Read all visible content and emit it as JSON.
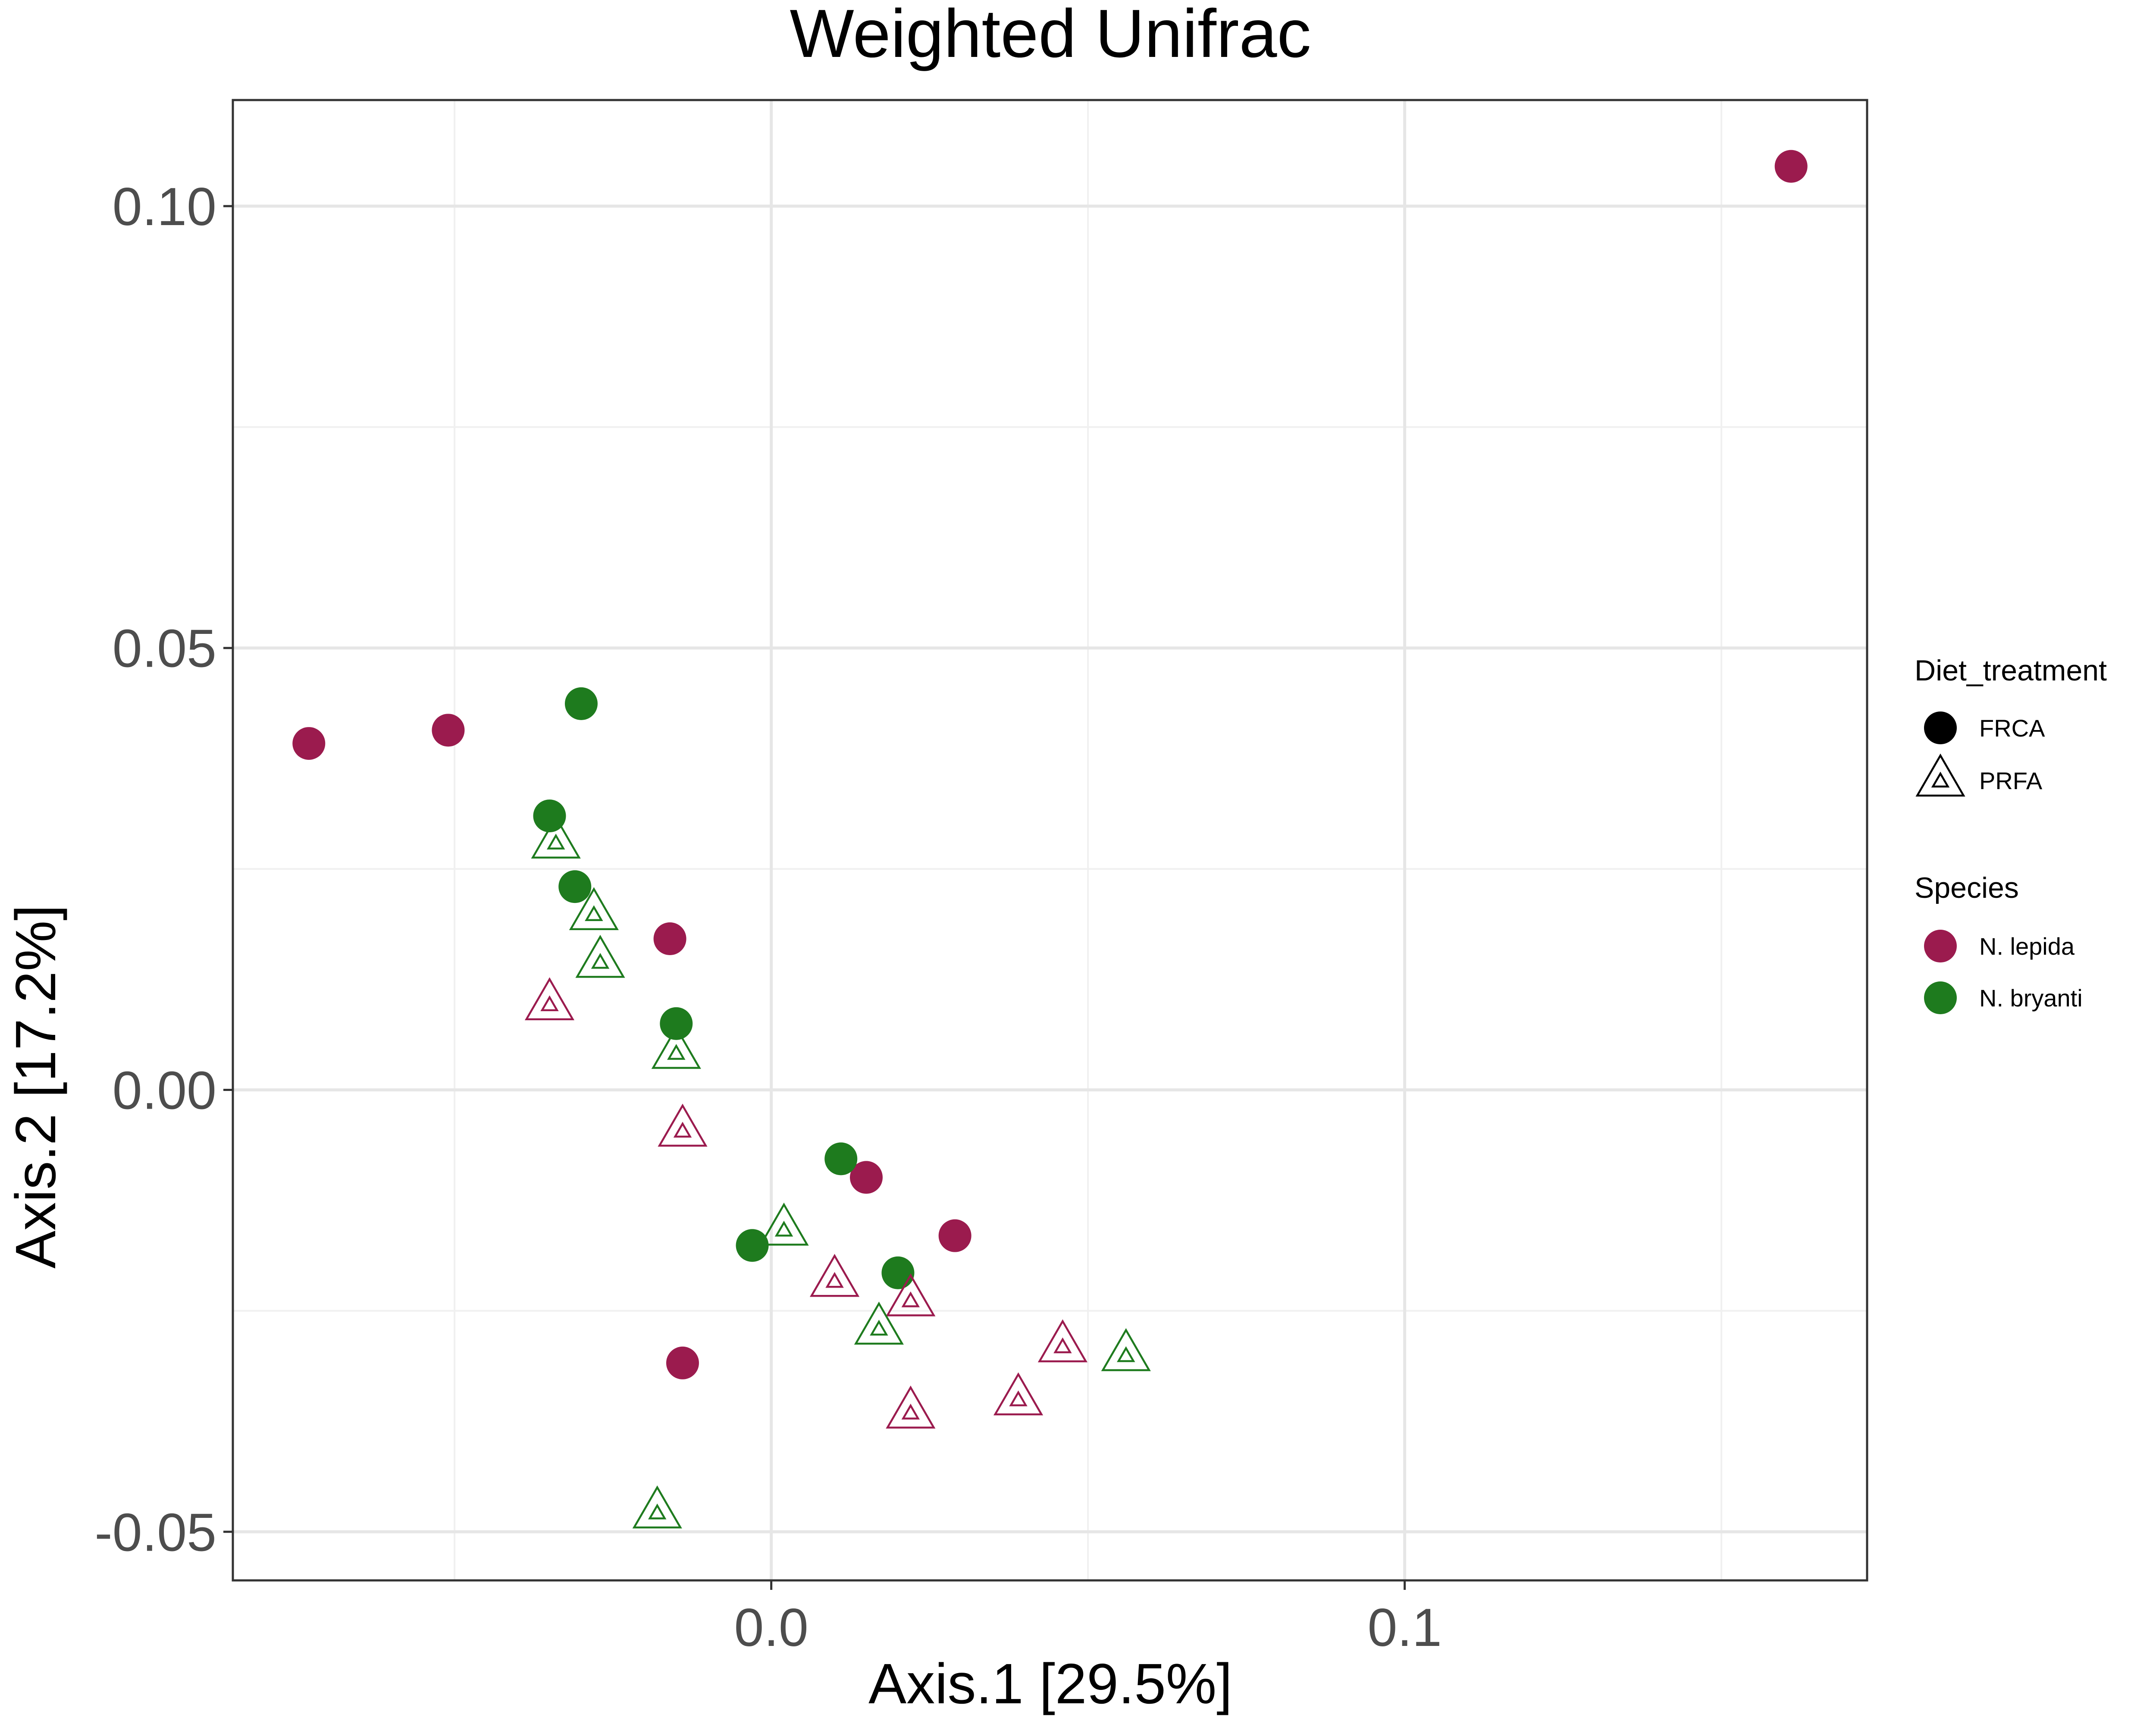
{
  "chart_data": {
    "type": "scatter",
    "title": "Weighted Unifrac",
    "xlabel": "Axis.1   [29.5%]",
    "ylabel": "Axis.2   [17.2%]",
    "xlim": [
      -0.085,
      0.173
    ],
    "ylim": [
      -0.0555,
      0.112
    ],
    "x_ticks": [
      0.0,
      0.1
    ],
    "x_tick_labels": [
      "0.0",
      "0.1"
    ],
    "y_ticks": [
      -0.05,
      0.0,
      0.05,
      0.1
    ],
    "y_tick_labels": [
      "-0.05",
      "0.00",
      "0.05",
      "0.10"
    ],
    "grid": true,
    "legend_position": "right",
    "colors": {
      "N. lepida": "#9B1B4E",
      "N. bryanti": "#1E7B1E"
    },
    "legends": [
      {
        "title": "Diet_treatment",
        "items": [
          {
            "label": "FRCA",
            "shape": "circle"
          },
          {
            "label": "PRFA",
            "shape": "triangle"
          }
        ]
      },
      {
        "title": "Species",
        "items": [
          {
            "label": "N. lepida",
            "color": "#9B1B4E"
          },
          {
            "label": "N. bryanti",
            "color": "#1E7B1E"
          }
        ]
      }
    ],
    "points": [
      {
        "x": 0.161,
        "y": 0.1045,
        "species": "N. lepida",
        "diet": "FRCA"
      },
      {
        "x": -0.073,
        "y": 0.0392,
        "species": "N. lepida",
        "diet": "FRCA"
      },
      {
        "x": -0.051,
        "y": 0.0407,
        "species": "N. lepida",
        "diet": "FRCA"
      },
      {
        "x": -0.016,
        "y": 0.0171,
        "species": "N. lepida",
        "diet": "FRCA"
      },
      {
        "x": 0.015,
        "y": -0.0099,
        "species": "N. lepida",
        "diet": "FRCA"
      },
      {
        "x": 0.029,
        "y": -0.0165,
        "species": "N. lepida",
        "diet": "FRCA"
      },
      {
        "x": -0.014,
        "y": -0.0309,
        "species": "N. lepida",
        "diet": "FRCA"
      },
      {
        "x": -0.03,
        "y": 0.0437,
        "species": "N. bryanti",
        "diet": "FRCA"
      },
      {
        "x": -0.035,
        "y": 0.031,
        "species": "N. bryanti",
        "diet": "FRCA"
      },
      {
        "x": -0.031,
        "y": 0.023,
        "species": "N. bryanti",
        "diet": "FRCA"
      },
      {
        "x": -0.015,
        "y": 0.0075,
        "species": "N. bryanti",
        "diet": "FRCA"
      },
      {
        "x": 0.011,
        "y": -0.0078,
        "species": "N. bryanti",
        "diet": "FRCA"
      },
      {
        "x": -0.003,
        "y": -0.0176,
        "species": "N. bryanti",
        "diet": "FRCA"
      },
      {
        "x": 0.02,
        "y": -0.0207,
        "species": "N. bryanti",
        "diet": "FRCA"
      },
      {
        "x": -0.035,
        "y": 0.0095,
        "species": "N. lepida",
        "diet": "PRFA"
      },
      {
        "x": -0.014,
        "y": -0.0048,
        "species": "N. lepida",
        "diet": "PRFA"
      },
      {
        "x": 0.01,
        "y": -0.0218,
        "species": "N. lepida",
        "diet": "PRFA"
      },
      {
        "x": 0.022,
        "y": -0.024,
        "species": "N. lepida",
        "diet": "PRFA"
      },
      {
        "x": 0.046,
        "y": -0.0292,
        "species": "N. lepida",
        "diet": "PRFA"
      },
      {
        "x": 0.039,
        "y": -0.0352,
        "species": "N. lepida",
        "diet": "PRFA"
      },
      {
        "x": 0.022,
        "y": -0.0367,
        "species": "N. lepida",
        "diet": "PRFA"
      },
      {
        "x": -0.034,
        "y": 0.0278,
        "species": "N. bryanti",
        "diet": "PRFA"
      },
      {
        "x": -0.028,
        "y": 0.0197,
        "species": "N. bryanti",
        "diet": "PRFA"
      },
      {
        "x": -0.027,
        "y": 0.0143,
        "species": "N. bryanti",
        "diet": "PRFA"
      },
      {
        "x": -0.015,
        "y": 0.004,
        "species": "N. bryanti",
        "diet": "PRFA"
      },
      {
        "x": 0.002,
        "y": -0.016,
        "species": "N. bryanti",
        "diet": "PRFA"
      },
      {
        "x": 0.017,
        "y": -0.0272,
        "species": "N. bryanti",
        "diet": "PRFA"
      },
      {
        "x": 0.056,
        "y": -0.0302,
        "species": "N. bryanti",
        "diet": "PRFA"
      },
      {
        "x": -0.018,
        "y": -0.048,
        "species": "N. bryanti",
        "diet": "PRFA"
      }
    ]
  }
}
